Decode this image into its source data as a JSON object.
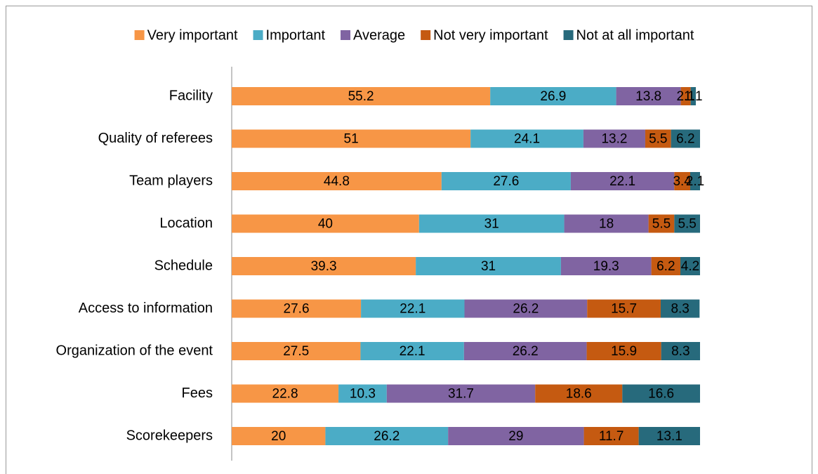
{
  "chart_data": {
    "type": "stacked-bar-horizontal",
    "categories": [
      "Facility",
      "Quality of referees",
      "Team players",
      "Location",
      "Schedule",
      "Access to information",
      "Organization of the event",
      "Fees",
      "Scorekeepers"
    ],
    "series": [
      {
        "name": "Very important",
        "color": "#f79646",
        "values": [
          55.2,
          51,
          44.8,
          40,
          39.3,
          27.6,
          27.5,
          22.8,
          20
        ]
      },
      {
        "name": "Important",
        "color": "#4bacc6",
        "values": [
          26.9,
          24.1,
          27.6,
          31,
          31,
          22.1,
          22.1,
          10.3,
          26.2
        ]
      },
      {
        "name": "Average",
        "color": "#8064a2",
        "values": [
          13.8,
          13.2,
          22.1,
          18,
          19.3,
          26.2,
          26.2,
          31.7,
          29
        ]
      },
      {
        "name": "Not very important",
        "color": "#c55a11",
        "values": [
          2.1,
          5.5,
          3.4,
          5.5,
          6.2,
          15.7,
          15.9,
          18.6,
          11.7
        ]
      },
      {
        "name": "Not at all important",
        "color": "#276a7c",
        "values": [
          1.1,
          6.2,
          2.1,
          5.5,
          4.2,
          8.3,
          8.3,
          16.6,
          13.1
        ]
      }
    ],
    "legend": "top"
  }
}
